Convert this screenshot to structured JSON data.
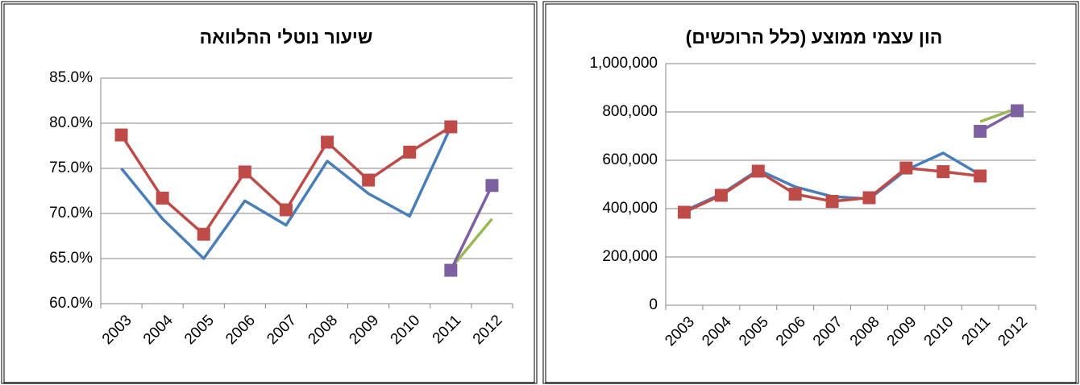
{
  "chart_data": [
    {
      "type": "line",
      "title": "שיעור נוטלי ההלוואה",
      "categories": [
        "2003",
        "2004",
        "2005",
        "2006",
        "2007",
        "2008",
        "2009",
        "2010",
        "2011",
        "2012"
      ],
      "ylim": [
        60,
        85
      ],
      "yticks": [
        {
          "value": 60,
          "label": "60.0%"
        },
        {
          "value": 65,
          "label": "65.0%"
        },
        {
          "value": 70,
          "label": "70.0%"
        },
        {
          "value": 75,
          "label": "75.0%"
        },
        {
          "value": 80,
          "label": "80.0%"
        },
        {
          "value": 85,
          "label": "85.0%"
        }
      ],
      "grid": true,
      "series": [
        {
          "color": "#4a7ebb",
          "marker": "none",
          "values": [
            75.0,
            69.4,
            65.0,
            71.4,
            68.7,
            75.8,
            72.2,
            69.7,
            79.6,
            null
          ]
        },
        {
          "color": "#be4b48",
          "marker": "square",
          "values": [
            78.7,
            71.7,
            67.7,
            74.6,
            70.4,
            77.9,
            73.7,
            76.8,
            79.6,
            null
          ]
        },
        {
          "color": "#98b954",
          "marker": "none",
          "values": [
            null,
            null,
            null,
            null,
            null,
            null,
            null,
            null,
            63.9,
            69.4
          ]
        },
        {
          "color": "#7d60a0",
          "marker": "square",
          "values": [
            null,
            null,
            null,
            null,
            null,
            null,
            null,
            null,
            63.7,
            73.1
          ]
        }
      ]
    },
    {
      "type": "line",
      "title": "הון עצמי ממוצע (כלל הרוכשים)",
      "categories": [
        "2003",
        "2004",
        "2005",
        "2006",
        "2007",
        "2008",
        "2009",
        "2010",
        "2011",
        "2012"
      ],
      "ylim": [
        0,
        1000000
      ],
      "yticks": [
        0,
        {
          "value": 200000,
          "label": "200,000"
        },
        {
          "value": 400000,
          "label": "400,000"
        },
        {
          "value": 600000,
          "label": "600,000"
        },
        {
          "value": 800000,
          "label": "800,000"
        },
        {
          "value": 1000000,
          "label": "1,000,000"
        }
      ],
      "grid": true,
      "series": [
        {
          "color": "#4a7ebb",
          "marker": "none",
          "values": [
            390000,
            460000,
            560000,
            490000,
            450000,
            440000,
            560000,
            630000,
            540000,
            null
          ]
        },
        {
          "color": "#be4b48",
          "marker": "square",
          "values": [
            385000,
            455000,
            555000,
            460000,
            430000,
            445000,
            568000,
            553000,
            535000,
            null
          ]
        },
        {
          "color": "#98b954",
          "marker": "none",
          "values": [
            null,
            null,
            null,
            null,
            null,
            null,
            null,
            null,
            760000,
            815000
          ]
        },
        {
          "color": "#7d60a0",
          "marker": "square",
          "values": [
            null,
            null,
            null,
            null,
            null,
            null,
            null,
            null,
            720000,
            805000
          ]
        }
      ]
    }
  ]
}
